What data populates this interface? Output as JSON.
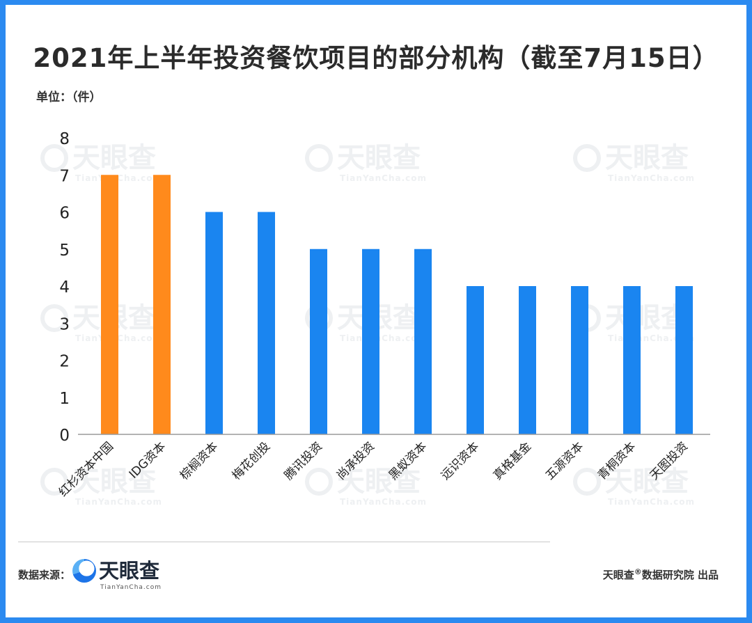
{
  "title": "2021年上半年投资餐饮项目的部分机构（截至7月15日）",
  "unit_label": "单位：（件）",
  "footer": {
    "source_label": "数据来源：",
    "brand_name": "天眼查",
    "brand_domain": "TianYanCha.com",
    "credit_brand": "天眼查",
    "credit_mark": "®",
    "credit_rest": "数据研究院 出品"
  },
  "watermark": {
    "text": "天眼查",
    "domain": "TianYanCha.com"
  },
  "colors": {
    "frame": "#2b8af0",
    "highlight": "#ff8a1c",
    "bar": "#1a85f0",
    "axis": "#9a9a9a"
  },
  "chart_data": {
    "type": "bar",
    "categories": [
      "红杉资本中国",
      "IDG资本",
      "棕榈资本",
      "梅花创投",
      "腾讯投资",
      "尚承投资",
      "黑蚁资本",
      "远识资本",
      "真格基金",
      "五源资本",
      "青桐资本",
      "天图投资"
    ],
    "values": [
      7,
      7,
      6,
      6,
      5,
      5,
      5,
      4,
      4,
      4,
      4,
      4
    ],
    "highlight_indices": [
      0,
      1
    ],
    "yticks": [
      0,
      1,
      2,
      3,
      4,
      5,
      6,
      7,
      8
    ],
    "ylim": [
      0,
      8
    ],
    "grid": false,
    "legend": "none"
  }
}
